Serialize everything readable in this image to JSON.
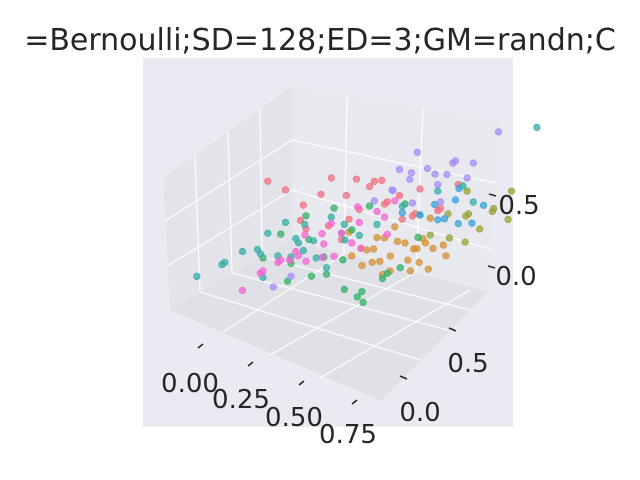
{
  "chart_data": {
    "type": "scatter",
    "projection": "3d",
    "title": "=Bernoulli;SD=128;ED=3;GM=randn;C",
    "xlabel": "",
    "ylabel": "",
    "zlabel": "",
    "grid": true,
    "x_ticks": [
      "0.00",
      "0.25",
      "0.50",
      "0.75"
    ],
    "y_ticks": [
      "0.0",
      "0.5"
    ],
    "z_ticks": [
      "0.0",
      "0.5"
    ],
    "xlim": [
      -0.15,
      0.85
    ],
    "ylim": [
      -0.2,
      0.9
    ],
    "zlim": [
      -0.4,
      0.85
    ],
    "series": [
      {
        "color": "#f0707f",
        "points": [
          [
            0.05,
            0.15,
            0.55
          ],
          [
            0.1,
            0.2,
            0.45
          ],
          [
            0.2,
            0.3,
            0.35
          ],
          [
            0.25,
            0.3,
            0.5
          ],
          [
            0.3,
            0.4,
            0.4
          ],
          [
            0.35,
            0.35,
            0.25
          ],
          [
            0.4,
            0.45,
            0.2
          ],
          [
            0.5,
            0.5,
            0.1
          ],
          [
            0.15,
            0.25,
            0.3
          ],
          [
            0.3,
            0.35,
            0.15
          ],
          [
            0.45,
            0.4,
            0.3
          ],
          [
            0.55,
            0.6,
            0.05
          ],
          [
            0.2,
            0.35,
            0.05
          ],
          [
            0.35,
            0.45,
            0.35
          ],
          [
            0.5,
            0.55,
            0.25
          ],
          [
            0.6,
            0.55,
            0.15
          ],
          [
            0.25,
            0.4,
            0.25
          ],
          [
            0.4,
            0.35,
            0.45
          ],
          [
            0.45,
            0.5,
            0.05
          ],
          [
            0.3,
            0.3,
            0.05
          ],
          [
            0.1,
            0.3,
            0.1
          ],
          [
            0.55,
            0.45,
            0.2
          ],
          [
            0.4,
            0.55,
            0.15
          ],
          [
            0.2,
            0.2,
            0.2
          ],
          [
            0.65,
            0.6,
            0.3
          ],
          [
            0.35,
            0.5,
            0.3
          ]
        ]
      },
      {
        "color": "#d39130",
        "points": [
          [
            0.3,
            0.35,
            0.05
          ],
          [
            0.4,
            0.4,
            0.0
          ],
          [
            0.5,
            0.45,
            -0.05
          ],
          [
            0.45,
            0.35,
            -0.1
          ],
          [
            0.55,
            0.5,
            -0.05
          ],
          [
            0.35,
            0.3,
            -0.05
          ],
          [
            0.6,
            0.45,
            0.0
          ],
          [
            0.5,
            0.35,
            -0.15
          ],
          [
            0.4,
            0.3,
            -0.1
          ],
          [
            0.55,
            0.4,
            -0.1
          ],
          [
            0.65,
            0.5,
            -0.05
          ],
          [
            0.45,
            0.45,
            0.05
          ],
          [
            0.6,
            0.35,
            -0.1
          ],
          [
            0.7,
            0.45,
            -0.05
          ],
          [
            0.35,
            0.4,
            -0.12
          ],
          [
            0.5,
            0.4,
            0.02
          ],
          [
            0.45,
            0.3,
            -0.05
          ],
          [
            0.55,
            0.55,
            0.05
          ],
          [
            0.65,
            0.4,
            -0.12
          ],
          [
            0.4,
            0.45,
            -0.06
          ],
          [
            0.5,
            0.3,
            -0.12
          ],
          [
            0.6,
            0.5,
            -0.1
          ],
          [
            0.48,
            0.38,
            -0.08
          ],
          [
            0.58,
            0.42,
            -0.02
          ],
          [
            0.42,
            0.35,
            -0.02
          ],
          [
            0.52,
            0.48,
            -0.12
          ],
          [
            0.38,
            0.32,
            0.0
          ],
          [
            0.62,
            0.38,
            -0.06
          ]
        ]
      },
      {
        "color": "#97a431",
        "points": [
          [
            0.7,
            0.6,
            0.1
          ],
          [
            0.75,
            0.7,
            0.05
          ],
          [
            0.8,
            0.75,
            0.15
          ],
          [
            0.65,
            0.65,
            0.0
          ],
          [
            0.72,
            0.55,
            -0.05
          ],
          [
            0.6,
            0.6,
            0.05
          ],
          [
            0.78,
            0.65,
            0.1
          ],
          [
            0.55,
            0.55,
            -0.08
          ],
          [
            0.68,
            0.5,
            0.02
          ],
          [
            0.82,
            0.7,
            0.0
          ],
          [
            0.62,
            0.7,
            0.12
          ],
          [
            0.74,
            0.62,
            -0.02
          ]
        ]
      },
      {
        "color": "#32b165",
        "points": [
          [
            0.1,
            0.05,
            0.1
          ],
          [
            0.2,
            0.1,
            0.05
          ],
          [
            0.3,
            0.2,
            -0.1
          ],
          [
            0.35,
            0.25,
            -0.25
          ],
          [
            0.4,
            0.3,
            -0.3
          ],
          [
            0.45,
            0.2,
            -0.2
          ],
          [
            0.25,
            0.15,
            0.2
          ],
          [
            0.3,
            0.25,
            0.35
          ],
          [
            0.4,
            0.35,
            0.3
          ],
          [
            0.15,
            0.1,
            0.25
          ],
          [
            0.5,
            0.3,
            -0.15
          ],
          [
            0.45,
            0.4,
            -0.25
          ],
          [
            0.35,
            0.3,
            0.15
          ],
          [
            0.2,
            0.2,
            0.3
          ],
          [
            0.55,
            0.35,
            -0.1
          ],
          [
            0.3,
            0.1,
            0.0
          ],
          [
            0.25,
            0.25,
            -0.05
          ],
          [
            0.38,
            0.2,
            0.05
          ],
          [
            0.5,
            0.45,
            0.25
          ],
          [
            0.42,
            0.28,
            -0.35
          ],
          [
            0.6,
            0.4,
            0.1
          ],
          [
            0.22,
            0.05,
            -0.02
          ]
        ]
      },
      {
        "color": "#36ada4",
        "points": [
          [
            0.0,
            0.05,
            0.1
          ],
          [
            0.05,
            0.1,
            0.05
          ],
          [
            0.1,
            0.15,
            0.0
          ],
          [
            0.15,
            0.2,
            0.1
          ],
          [
            0.2,
            0.25,
            0.05
          ],
          [
            0.25,
            0.2,
            0.0
          ],
          [
            0.3,
            0.3,
            0.1
          ],
          [
            0.1,
            0.05,
            -0.05
          ],
          [
            -0.05,
            0.0,
            0.05
          ],
          [
            0.2,
            0.15,
            0.15
          ],
          [
            0.35,
            0.35,
            0.05
          ],
          [
            0.15,
            0.25,
            -0.05
          ],
          [
            0.05,
            0.15,
            0.15
          ],
          [
            0.25,
            0.3,
            0.2
          ],
          [
            0.4,
            0.4,
            0.1
          ],
          [
            0.3,
            0.2,
            -0.05
          ],
          [
            0.45,
            0.5,
            0.15
          ],
          [
            0.1,
            0.2,
            0.2
          ],
          [
            -0.1,
            0.05,
            -0.05
          ],
          [
            0.2,
            0.1,
            0.1
          ],
          [
            0.55,
            0.6,
            0.2
          ],
          [
            0.6,
            0.7,
            0.15
          ],
          [
            0.65,
            0.7,
            0.05
          ],
          [
            0.35,
            0.25,
            0.25
          ],
          [
            0.0,
            0.15,
            0.0
          ],
          [
            0.28,
            0.35,
            -0.02
          ],
          [
            0.85,
            0.85,
            0.55
          ],
          [
            -0.15,
            -0.05,
            -0.05
          ],
          [
            0.12,
            0.3,
            0.08
          ],
          [
            0.5,
            0.55,
            0.05
          ]
        ]
      },
      {
        "color": "#3aa0d8",
        "points": [
          [
            0.5,
            0.55,
            0.05
          ],
          [
            0.6,
            0.65,
            0.1
          ],
          [
            0.55,
            0.6,
            -0.02
          ],
          [
            0.7,
            0.7,
            0.05
          ],
          [
            0.45,
            0.5,
            0.1
          ],
          [
            0.65,
            0.6,
            0.0
          ],
          [
            0.58,
            0.7,
            0.12
          ],
          [
            0.68,
            0.65,
            -0.04
          ],
          [
            0.52,
            0.62,
            0.06
          ],
          [
            0.62,
            0.55,
            0.08
          ]
        ]
      },
      {
        "color": "#a48cf4",
        "points": [
          [
            0.4,
            0.5,
            0.25
          ],
          [
            0.45,
            0.55,
            0.3
          ],
          [
            0.5,
            0.6,
            0.35
          ],
          [
            0.55,
            0.6,
            0.25
          ],
          [
            0.6,
            0.65,
            0.4
          ],
          [
            0.5,
            0.5,
            0.2
          ],
          [
            0.45,
            0.6,
            0.45
          ],
          [
            0.55,
            0.7,
            0.3
          ],
          [
            0.65,
            0.7,
            0.35
          ],
          [
            0.35,
            0.45,
            0.2
          ],
          [
            0.6,
            0.55,
            0.2
          ],
          [
            0.7,
            0.8,
            0.5
          ],
          [
            0.4,
            0.55,
            0.35
          ],
          [
            0.5,
            0.65,
            0.25
          ],
          [
            0.58,
            0.62,
            0.32
          ],
          [
            0.48,
            0.52,
            0.4
          ],
          [
            0.2,
            0.1,
            -0.05
          ],
          [
            0.15,
            0.05,
            -0.1
          ],
          [
            0.62,
            0.7,
            0.22
          ],
          [
            0.42,
            0.48,
            0.28
          ]
        ]
      },
      {
        "color": "#f564d4",
        "points": [
          [
            0.1,
            0.15,
            -0.05
          ],
          [
            0.15,
            0.2,
            0.0
          ],
          [
            0.2,
            0.2,
            -0.05
          ],
          [
            0.25,
            0.25,
            0.05
          ],
          [
            0.3,
            0.3,
            0.1
          ],
          [
            0.35,
            0.35,
            0.15
          ],
          [
            0.4,
            0.4,
            0.2
          ],
          [
            0.05,
            0.1,
            -0.1
          ],
          [
            0.2,
            0.15,
            0.05
          ],
          [
            0.3,
            0.25,
            -0.02
          ],
          [
            0.35,
            0.3,
            0.05
          ],
          [
            0.25,
            0.3,
            0.15
          ],
          [
            0.15,
            0.1,
            0.05
          ],
          [
            0.4,
            0.45,
            0.1
          ],
          [
            0.45,
            0.45,
            0.25
          ],
          [
            0.1,
            0.05,
            0.0
          ],
          [
            0.22,
            0.28,
            0.08
          ],
          [
            0.32,
            0.38,
            0.22
          ],
          [
            0.18,
            0.22,
            0.12
          ],
          [
            0.12,
            0.2,
            -0.08
          ],
          [
            0.38,
            0.32,
            0.0
          ],
          [
            0.28,
            0.2,
            0.02
          ],
          [
            0.0,
            0.05,
            -0.2
          ],
          [
            0.45,
            0.4,
            0.05
          ]
        ]
      }
    ]
  }
}
